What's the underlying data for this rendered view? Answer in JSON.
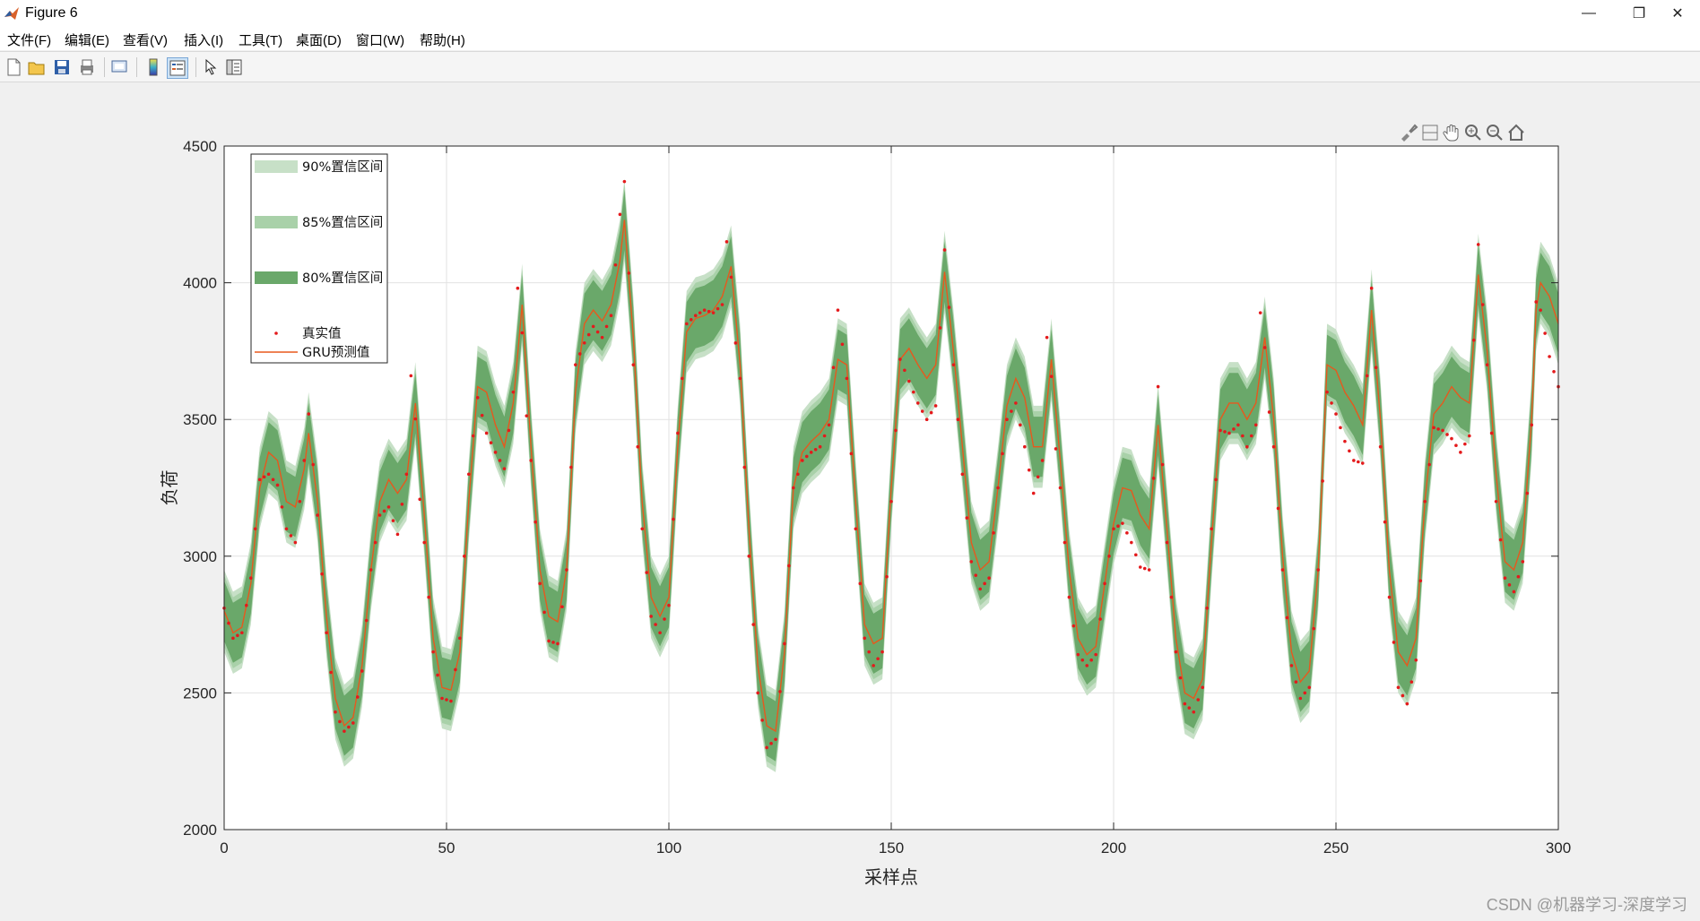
{
  "window": {
    "title": "Figure 6",
    "controls": {
      "minimize": "—",
      "restore": "❐",
      "close": "✕"
    }
  },
  "menu": [
    {
      "label": "文件(F)"
    },
    {
      "label": "编辑(E)"
    },
    {
      "label": "查看(V)"
    },
    {
      "label": "插入(I)"
    },
    {
      "label": "工具(T)"
    },
    {
      "label": "桌面(D)"
    },
    {
      "label": "窗口(W)"
    },
    {
      "label": "帮助(H)"
    }
  ],
  "toolbar": [
    "new-figure-icon",
    "open-folder-icon",
    "save-icon",
    "print-icon",
    "print-preview-icon",
    "colorbar-icon",
    "legend-icon",
    "pointer-icon",
    "property-inspector-icon"
  ],
  "axes_toolbar": [
    "brush-icon",
    "data-cursor-icon",
    "pan-icon",
    "zoom-in-icon",
    "zoom-out-icon",
    "home-icon"
  ],
  "watermark": "CSDN @机器学习-深度学习",
  "colors": {
    "band90": "#c7e0c7",
    "band85": "#a9d1a9",
    "band80": "#6aa86a",
    "prediction": "#e8581d",
    "actual": "#e41a1c"
  },
  "chart_data": {
    "type": "line",
    "title": "",
    "xlabel": "采样点",
    "ylabel": "负荷",
    "xlim": [
      0,
      300
    ],
    "ylim": [
      2000,
      4500
    ],
    "xticks": [
      0,
      50,
      100,
      150,
      200,
      250,
      300
    ],
    "yticks": [
      2000,
      2500,
      3000,
      3500,
      4000,
      4500
    ],
    "grid": true,
    "legend_position": "top-left",
    "legend": [
      {
        "label": "90%置信区间",
        "kind": "band"
      },
      {
        "label": "85%置信区间",
        "kind": "band"
      },
      {
        "label": "80%置信区间",
        "kind": "band"
      },
      {
        "label": "真实值",
        "kind": "marker"
      },
      {
        "label": "GRU预测值",
        "kind": "line"
      }
    ],
    "bands": [
      {
        "name": "90%置信区间",
        "halfwidth": 150
      },
      {
        "name": "85%置信区间",
        "halfwidth": 130
      },
      {
        "name": "80%置信区间",
        "halfwidth": 110
      }
    ],
    "prediction_key": [
      [
        0,
        2800
      ],
      [
        2,
        2720
      ],
      [
        4,
        2740
      ],
      [
        6,
        2900
      ],
      [
        8,
        3250
      ],
      [
        10,
        3380
      ],
      [
        12,
        3350
      ],
      [
        14,
        3200
      ],
      [
        16,
        3180
      ],
      [
        18,
        3320
      ],
      [
        19,
        3450
      ],
      [
        21,
        3200
      ],
      [
        23,
        2780
      ],
      [
        25,
        2480
      ],
      [
        27,
        2380
      ],
      [
        29,
        2410
      ],
      [
        31,
        2600
      ],
      [
        33,
        2950
      ],
      [
        35,
        3200
      ],
      [
        37,
        3280
      ],
      [
        39,
        3230
      ],
      [
        41,
        3280
      ],
      [
        43,
        3560
      ],
      [
        45,
        3150
      ],
      [
        47,
        2700
      ],
      [
        49,
        2520
      ],
      [
        51,
        2510
      ],
      [
        53,
        2650
      ],
      [
        55,
        3200
      ],
      [
        57,
        3620
      ],
      [
        59,
        3600
      ],
      [
        61,
        3480
      ],
      [
        63,
        3400
      ],
      [
        65,
        3560
      ],
      [
        67,
        3920
      ],
      [
        69,
        3400
      ],
      [
        71,
        2950
      ],
      [
        73,
        2780
      ],
      [
        75,
        2760
      ],
      [
        77,
        2950
      ],
      [
        79,
        3600
      ],
      [
        81,
        3850
      ],
      [
        83,
        3900
      ],
      [
        85,
        3860
      ],
      [
        87,
        3920
      ],
      [
        89,
        4080
      ],
      [
        90,
        4230
      ],
      [
        92,
        3800
      ],
      [
        94,
        3200
      ],
      [
        96,
        2850
      ],
      [
        98,
        2780
      ],
      [
        100,
        2850
      ],
      [
        102,
        3400
      ],
      [
        104,
        3820
      ],
      [
        106,
        3870
      ],
      [
        108,
        3880
      ],
      [
        110,
        3900
      ],
      [
        112,
        3950
      ],
      [
        114,
        4060
      ],
      [
        116,
        3700
      ],
      [
        118,
        3100
      ],
      [
        120,
        2600
      ],
      [
        122,
        2380
      ],
      [
        124,
        2360
      ],
      [
        126,
        2650
      ],
      [
        128,
        3250
      ],
      [
        130,
        3380
      ],
      [
        132,
        3420
      ],
      [
        134,
        3450
      ],
      [
        136,
        3500
      ],
      [
        138,
        3720
      ],
      [
        140,
        3700
      ],
      [
        142,
        3200
      ],
      [
        144,
        2750
      ],
      [
        146,
        2680
      ],
      [
        148,
        2700
      ],
      [
        150,
        3250
      ],
      [
        152,
        3720
      ],
      [
        154,
        3760
      ],
      [
        156,
        3700
      ],
      [
        158,
        3650
      ],
      [
        160,
        3700
      ],
      [
        162,
        4040
      ],
      [
        164,
        3750
      ],
      [
        166,
        3400
      ],
      [
        168,
        3050
      ],
      [
        170,
        2950
      ],
      [
        172,
        2980
      ],
      [
        174,
        3250
      ],
      [
        176,
        3550
      ],
      [
        178,
        3650
      ],
      [
        180,
        3580
      ],
      [
        182,
        3400
      ],
      [
        184,
        3400
      ],
      [
        186,
        3720
      ],
      [
        188,
        3350
      ],
      [
        190,
        2950
      ],
      [
        192,
        2700
      ],
      [
        194,
        2640
      ],
      [
        196,
        2670
      ],
      [
        198,
        2900
      ],
      [
        200,
        3120
      ],
      [
        202,
        3250
      ],
      [
        204,
        3240
      ],
      [
        206,
        3150
      ],
      [
        208,
        3100
      ],
      [
        210,
        3480
      ],
      [
        212,
        3100
      ],
      [
        214,
        2700
      ],
      [
        216,
        2500
      ],
      [
        218,
        2480
      ],
      [
        220,
        2550
      ],
      [
        222,
        3050
      ],
      [
        224,
        3500
      ],
      [
        226,
        3560
      ],
      [
        228,
        3560
      ],
      [
        230,
        3500
      ],
      [
        232,
        3560
      ],
      [
        234,
        3800
      ],
      [
        236,
        3500
      ],
      [
        238,
        3000
      ],
      [
        240,
        2650
      ],
      [
        242,
        2540
      ],
      [
        244,
        2580
      ],
      [
        246,
        2950
      ],
      [
        248,
        3700
      ],
      [
        250,
        3680
      ],
      [
        252,
        3600
      ],
      [
        254,
        3550
      ],
      [
        256,
        3480
      ],
      [
        258,
        3900
      ],
      [
        260,
        3500
      ],
      [
        262,
        2950
      ],
      [
        264,
        2650
      ],
      [
        266,
        2600
      ],
      [
        268,
        2700
      ],
      [
        270,
        3200
      ],
      [
        272,
        3520
      ],
      [
        274,
        3560
      ],
      [
        276,
        3620
      ],
      [
        278,
        3580
      ],
      [
        280,
        3560
      ],
      [
        282,
        4030
      ],
      [
        284,
        3750
      ],
      [
        286,
        3300
      ],
      [
        288,
        2980
      ],
      [
        290,
        2950
      ],
      [
        292,
        3050
      ],
      [
        294,
        3500
      ],
      [
        295,
        3900
      ],
      [
        296,
        4000
      ],
      [
        298,
        3950
      ],
      [
        300,
        3850
      ]
    ],
    "actual_key": [
      [
        0,
        2810
      ],
      [
        2,
        2700
      ],
      [
        4,
        2720
      ],
      [
        6,
        2920
      ],
      [
        8,
        3280
      ],
      [
        10,
        3300
      ],
      [
        12,
        3260
      ],
      [
        14,
        3100
      ],
      [
        16,
        3050
      ],
      [
        18,
        3350
      ],
      [
        19,
        3520
      ],
      [
        21,
        3150
      ],
      [
        23,
        2720
      ],
      [
        25,
        2430
      ],
      [
        27,
        2360
      ],
      [
        29,
        2390
      ],
      [
        31,
        2580
      ],
      [
        33,
        2950
      ],
      [
        35,
        3150
      ],
      [
        37,
        3180
      ],
      [
        39,
        3080
      ],
      [
        41,
        3300
      ],
      [
        42,
        3660
      ],
      [
        45,
        3050
      ],
      [
        47,
        2650
      ],
      [
        49,
        2480
      ],
      [
        51,
        2470
      ],
      [
        53,
        2700
      ],
      [
        55,
        3300
      ],
      [
        57,
        3580
      ],
      [
        59,
        3450
      ],
      [
        61,
        3380
      ],
      [
        63,
        3320
      ],
      [
        65,
        3600
      ],
      [
        66,
        3980
      ],
      [
        69,
        3350
      ],
      [
        71,
        2900
      ],
      [
        73,
        2690
      ],
      [
        75,
        2680
      ],
      [
        77,
        2950
      ],
      [
        79,
        3700
      ],
      [
        81,
        3780
      ],
      [
        83,
        3840
      ],
      [
        85,
        3800
      ],
      [
        87,
        3880
      ],
      [
        89,
        4250
      ],
      [
        90,
        4370
      ],
      [
        92,
        3700
      ],
      [
        94,
        3100
      ],
      [
        96,
        2780
      ],
      [
        98,
        2720
      ],
      [
        100,
        2820
      ],
      [
        102,
        3450
      ],
      [
        104,
        3850
      ],
      [
        106,
        3880
      ],
      [
        108,
        3900
      ],
      [
        110,
        3890
      ],
      [
        112,
        3920
      ],
      [
        113,
        4150
      ],
      [
        116,
        3650
      ],
      [
        118,
        3000
      ],
      [
        120,
        2500
      ],
      [
        122,
        2300
      ],
      [
        124,
        2330
      ],
      [
        126,
        2680
      ],
      [
        128,
        3250
      ],
      [
        130,
        3350
      ],
      [
        132,
        3380
      ],
      [
        134,
        3400
      ],
      [
        136,
        3480
      ],
      [
        138,
        3900
      ],
      [
        140,
        3650
      ],
      [
        142,
        3100
      ],
      [
        144,
        2700
      ],
      [
        146,
        2600
      ],
      [
        148,
        2650
      ],
      [
        150,
        3200
      ],
      [
        152,
        3720
      ],
      [
        154,
        3640
      ],
      [
        156,
        3560
      ],
      [
        158,
        3500
      ],
      [
        160,
        3550
      ],
      [
        162,
        4120
      ],
      [
        164,
        3700
      ],
      [
        166,
        3300
      ],
      [
        168,
        2980
      ],
      [
        170,
        2880
      ],
      [
        172,
        2920
      ],
      [
        174,
        3250
      ],
      [
        176,
        3500
      ],
      [
        178,
        3560
      ],
      [
        180,
        3400
      ],
      [
        182,
        3230
      ],
      [
        184,
        3350
      ],
      [
        185,
        3800
      ],
      [
        188,
        3250
      ],
      [
        190,
        2850
      ],
      [
        192,
        2640
      ],
      [
        194,
        2600
      ],
      [
        196,
        2640
      ],
      [
        198,
        2900
      ],
      [
        200,
        3100
      ],
      [
        202,
        3120
      ],
      [
        204,
        3050
      ],
      [
        206,
        2960
      ],
      [
        208,
        2950
      ],
      [
        210,
        3620
      ],
      [
        212,
        3050
      ],
      [
        214,
        2650
      ],
      [
        216,
        2460
      ],
      [
        218,
        2430
      ],
      [
        220,
        2520
      ],
      [
        222,
        3100
      ],
      [
        224,
        3460
      ],
      [
        226,
        3450
      ],
      [
        228,
        3480
      ],
      [
        230,
        3400
      ],
      [
        232,
        3480
      ],
      [
        233,
        3890
      ],
      [
        236,
        3400
      ],
      [
        238,
        2950
      ],
      [
        240,
        2600
      ],
      [
        242,
        2480
      ],
      [
        244,
        2520
      ],
      [
        246,
        2950
      ],
      [
        248,
        3600
      ],
      [
        250,
        3520
      ],
      [
        252,
        3420
      ],
      [
        254,
        3350
      ],
      [
        256,
        3340
      ],
      [
        258,
        3980
      ],
      [
        260,
        3400
      ],
      [
        262,
        2850
      ],
      [
        264,
        2520
      ],
      [
        266,
        2460
      ],
      [
        268,
        2620
      ],
      [
        270,
        3200
      ],
      [
        272,
        3470
      ],
      [
        274,
        3460
      ],
      [
        276,
        3430
      ],
      [
        278,
        3380
      ],
      [
        280,
        3440
      ],
      [
        282,
        4140
      ],
      [
        284,
        3700
      ],
      [
        286,
        3200
      ],
      [
        288,
        2920
      ],
      [
        290,
        2870
      ],
      [
        292,
        2980
      ],
      [
        294,
        3480
      ],
      [
        295,
        3930
      ],
      [
        296,
        3900
      ],
      [
        298,
        3730
      ],
      [
        300,
        3620
      ]
    ]
  }
}
